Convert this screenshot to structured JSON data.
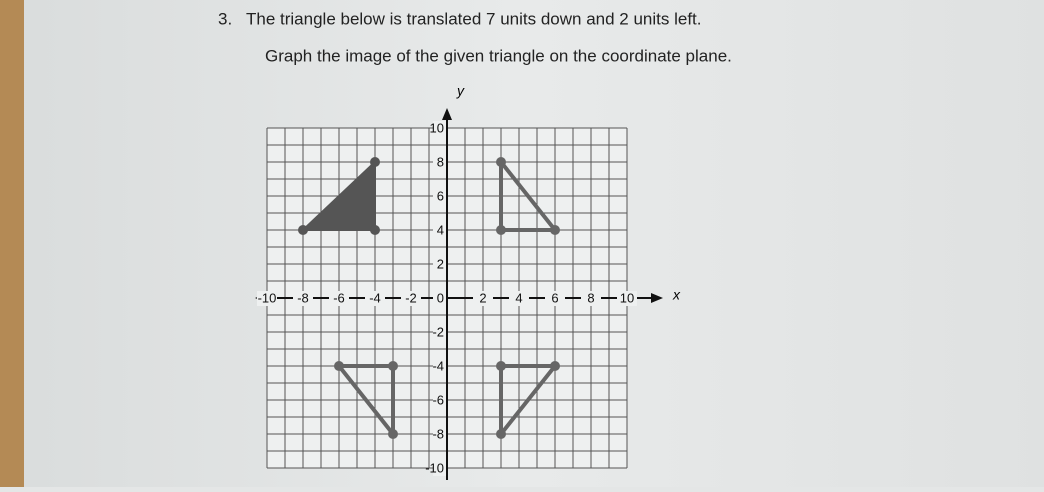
{
  "problem": {
    "number": "3.",
    "text": "The triangle below is translated 7 units down and 2 units left.",
    "instruction": "Graph the image of the given triangle on the coordinate plane."
  },
  "plane": {
    "x_label": "x",
    "y_label": "y",
    "xlim": [
      -10,
      10
    ],
    "ylim": [
      -10,
      10
    ],
    "xticks": [
      -10,
      -8,
      -6,
      -4,
      -2,
      2,
      4,
      6,
      8,
      10
    ],
    "yticks": [
      10,
      8,
      6,
      4,
      2,
      0,
      -2,
      -4,
      -6,
      -8,
      -10
    ],
    "given_triangle": {
      "vertices": [
        [
          -8,
          4
        ],
        [
          -4,
          4
        ],
        [
          -4,
          8
        ]
      ],
      "color": "#555555"
    },
    "sketched_triangles": [
      {
        "vertices": [
          [
            3,
            8
          ],
          [
            3,
            4
          ],
          [
            6,
            4
          ]
        ],
        "color": "#666666"
      },
      {
        "vertices": [
          [
            3,
            -4
          ],
          [
            6,
            -4
          ],
          [
            3,
            -8
          ]
        ],
        "color": "#666666"
      },
      {
        "vertices": [
          [
            -6,
            -4
          ],
          [
            -3,
            -4
          ],
          [
            -3,
            -8
          ]
        ],
        "color": "#666666"
      }
    ]
  }
}
